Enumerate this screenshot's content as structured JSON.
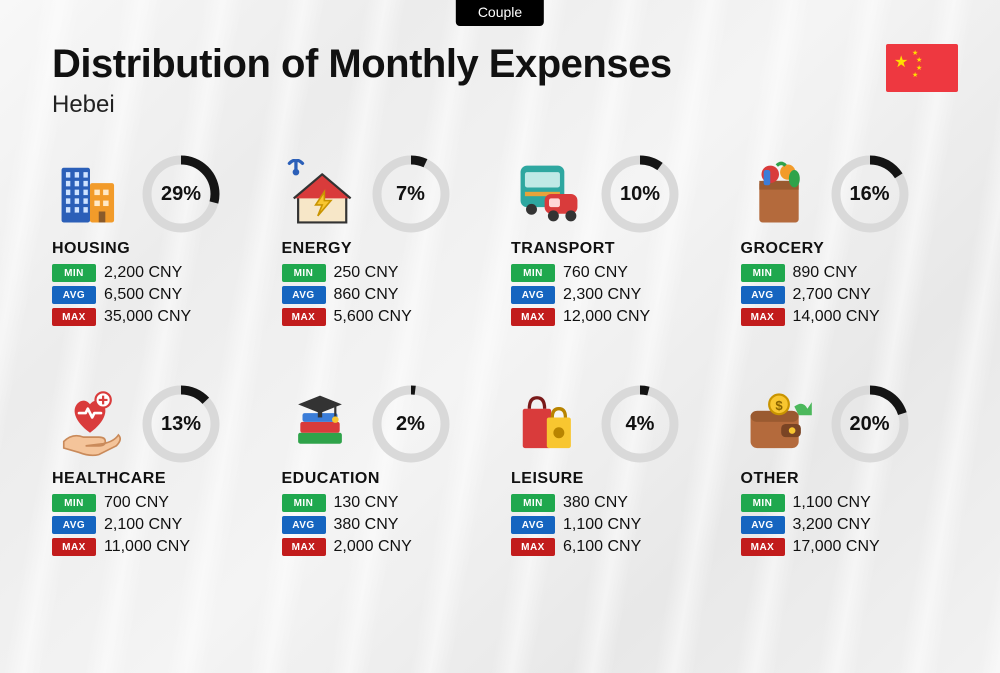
{
  "tag": "Couple",
  "title": "Distribution of Monthly Expenses",
  "subtitle": "Hebei",
  "currency": "CNY",
  "flag": {
    "bg": "#ee3840",
    "star": "#ffde00"
  },
  "badge_labels": {
    "min": "MIN",
    "avg": "AVG",
    "max": "MAX"
  },
  "badge_colors": {
    "min": "#1fa84e",
    "avg": "#1565c0",
    "max": "#c21c1c"
  },
  "donut": {
    "ring_color": "#141414",
    "track_color": "#d9d9d9",
    "stroke_width": 9,
    "radius": 34,
    "label_fontsize": 20,
    "label_fontweight": 800
  },
  "layout": {
    "columns": 4,
    "rows": 2,
    "background": "linear-gradient-light-gray"
  },
  "typography": {
    "title_fontsize": 40,
    "title_fontweight": 800,
    "subtitle_fontsize": 24,
    "category_fontsize": 16,
    "category_fontweight": 800,
    "value_fontsize": 16
  },
  "categories": [
    {
      "key": "housing",
      "name": "HOUSING",
      "percent": 29,
      "min": "2,200",
      "avg": "6,500",
      "max": "35,000",
      "icon": "buildings"
    },
    {
      "key": "energy",
      "name": "ENERGY",
      "percent": 7,
      "min": "250",
      "avg": "860",
      "max": "5,600",
      "icon": "house-bolt"
    },
    {
      "key": "transport",
      "name": "TRANSPORT",
      "percent": 10,
      "min": "760",
      "avg": "2,300",
      "max": "12,000",
      "icon": "bus-car"
    },
    {
      "key": "grocery",
      "name": "GROCERY",
      "percent": 16,
      "min": "890",
      "avg": "2,700",
      "max": "14,000",
      "icon": "grocery-bag"
    },
    {
      "key": "healthcare",
      "name": "HEALTHCARE",
      "percent": 13,
      "min": "700",
      "avg": "2,100",
      "max": "11,000",
      "icon": "heart-hand"
    },
    {
      "key": "education",
      "name": "EDUCATION",
      "percent": 2,
      "min": "130",
      "avg": "380",
      "max": "2,000",
      "icon": "books-cap"
    },
    {
      "key": "leisure",
      "name": "LEISURE",
      "percent": 4,
      "min": "380",
      "avg": "1,100",
      "max": "6,100",
      "icon": "shopping-bags"
    },
    {
      "key": "other",
      "name": "OTHER",
      "percent": 20,
      "min": "1,100",
      "avg": "3,200",
      "max": "17,000",
      "icon": "wallet-arrow"
    }
  ],
  "icon_palette": {
    "blue": "#2b5fb8",
    "blue2": "#3b7dd8",
    "orange": "#f29b2a",
    "yellow": "#f8c630",
    "red": "#d93b3b",
    "green": "#2fa34a",
    "green2": "#4cb85c",
    "brown": "#b46a3c",
    "teal": "#2ea7a0",
    "purple": "#6a4ca0",
    "dark": "#333",
    "skin": "#f4c49a"
  }
}
